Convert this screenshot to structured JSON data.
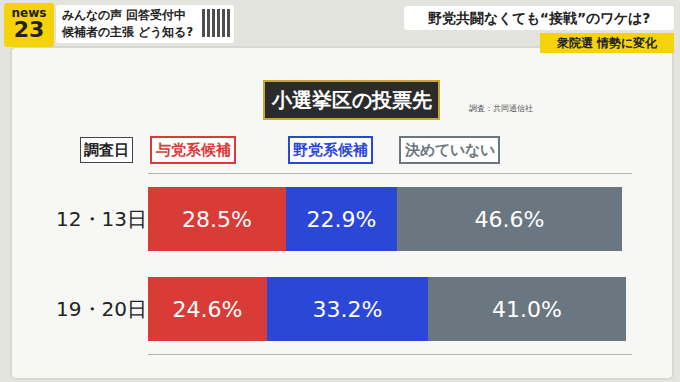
{
  "screen": {
    "logo": [
      "news",
      "23"
    ],
    "notice": [
      "みんなの声 回答受付中",
      "候補者の主張 どう知る?"
    ],
    "headline": "野党共闘なくても“接戦”のワケは?",
    "tag": "衆院選 情勢に変化"
  },
  "chart_data": {
    "type": "bar",
    "orientation": "horizontal",
    "stacked": true,
    "title": "小選挙区の投票先",
    "annotations": [
      "調査：共同通信社"
    ],
    "ylabel": "調査日",
    "categories": [
      "12・13日",
      "19・20日"
    ],
    "series": [
      {
        "name": "与党系候補",
        "color": "#d93b36",
        "values": [
          28.5,
          24.6
        ],
        "value_labels": [
          "28.5%",
          "24.6%"
        ]
      },
      {
        "name": "野党系候補",
        "color": "#2a47d8",
        "values": [
          22.9,
          33.2
        ],
        "value_labels": [
          "22.9%",
          "33.2%"
        ]
      },
      {
        "name": "決めていない",
        "color": "#6b7780",
        "values": [
          46.6,
          41.0
        ],
        "value_labels": [
          "46.6%",
          "41.0%"
        ]
      }
    ],
    "xlim": [
      0,
      100
    ],
    "xticks": [],
    "data_labels": true,
    "tick_labels": "y",
    "legend": "top"
  }
}
